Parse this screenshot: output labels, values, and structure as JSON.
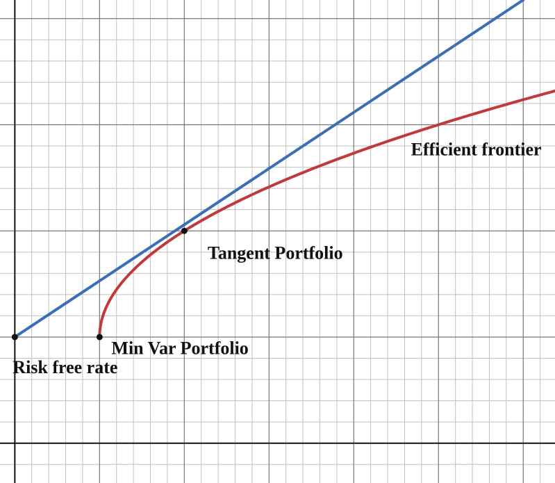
{
  "chart_data": {
    "type": "line",
    "title": "",
    "xlabel": "",
    "ylabel": "",
    "xlim": [
      -0.35,
      12.75
    ],
    "ylim": [
      -0.75,
      8.35
    ],
    "grid": true,
    "minor_grid": true,
    "series": [
      {
        "kind": "efficient-frontier",
        "color": "#c0393b",
        "min_var": [
          2,
          2
        ],
        "tangent": [
          4,
          4
        ],
        "x_max": 12.75
      },
      {
        "kind": "capital-market-line",
        "color": "#3a6fb5",
        "x": [
          0,
          12
        ],
        "y": [
          2,
          8.35
        ]
      }
    ],
    "points": [
      {
        "x": 0,
        "y": 2
      },
      {
        "x": 2,
        "y": 2
      },
      {
        "x": 4,
        "y": 4
      }
    ],
    "annotations": [
      {
        "text": "Risk free rate",
        "x": -0.05,
        "y": 1.4
      },
      {
        "text": "Min Var Portfolio",
        "x": 2.28,
        "y": 1.76
      },
      {
        "text": "Tangent Portfolio",
        "x": 4.55,
        "y": 3.55
      },
      {
        "text": "Efficient frontier",
        "x": 9.35,
        "y": 5.5
      }
    ]
  }
}
